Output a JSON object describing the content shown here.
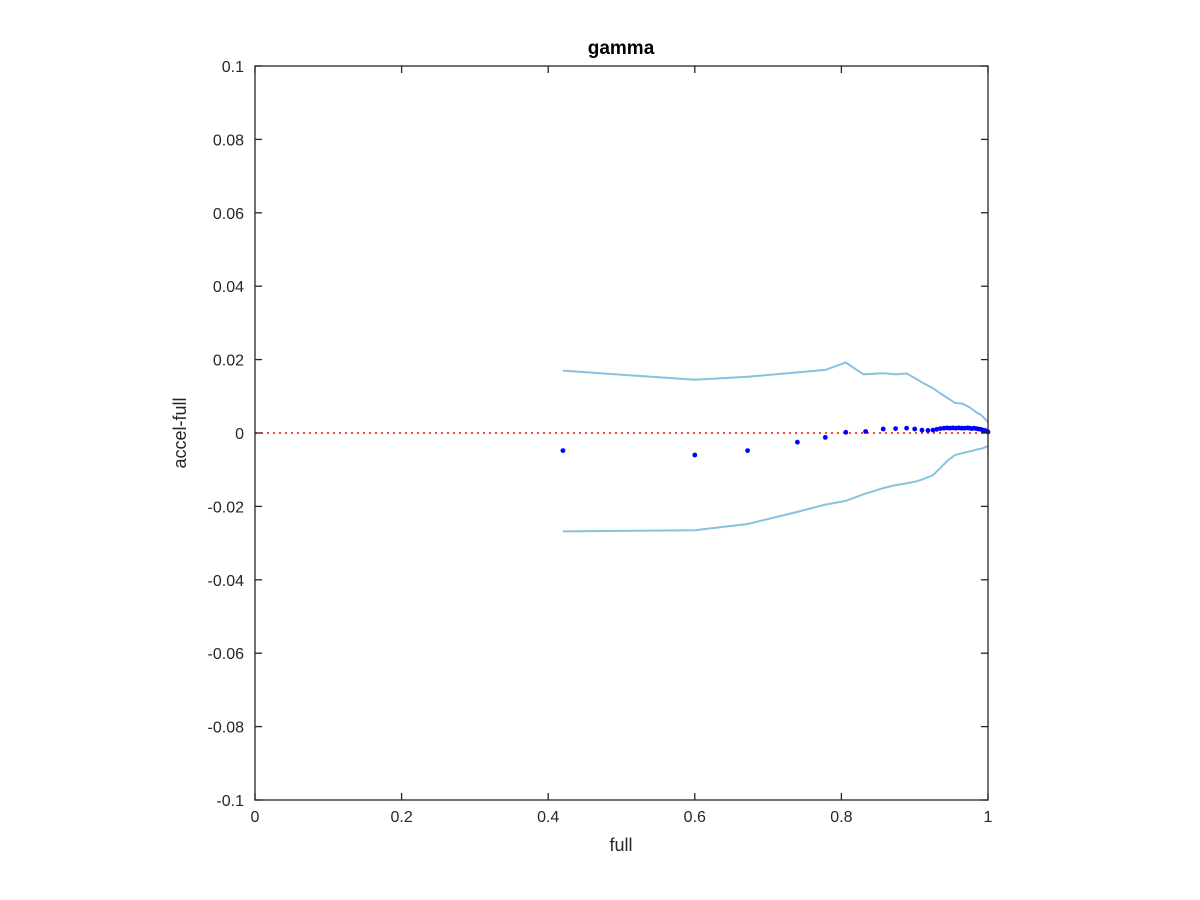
{
  "chart_data": {
    "type": "scatter",
    "title": "gamma",
    "xlabel": "full",
    "ylabel": "accel-full",
    "xlim": [
      0,
      1
    ],
    "ylim": [
      -0.1,
      0.1
    ],
    "x_ticks": [
      0,
      0.2,
      0.4,
      0.6,
      0.8,
      1
    ],
    "x_tick_labels": [
      "0",
      "0.2",
      "0.4",
      "0.6",
      "0.8",
      "1"
    ],
    "y_ticks": [
      -0.1,
      -0.08,
      -0.06,
      -0.04,
      -0.02,
      0,
      0.02,
      0.04,
      0.06,
      0.08,
      0.1
    ],
    "y_tick_labels": [
      "-0.1",
      "-0.08",
      "-0.06",
      "-0.04",
      "-0.02",
      "0",
      "0.02",
      "0.04",
      "0.06",
      "0.08",
      "0.1"
    ],
    "grid": false,
    "colors": {
      "points": "#0000ff",
      "bounds": "#89c2e0",
      "zero_line": "#ff0000",
      "axes": "#262626"
    },
    "reference_line": {
      "y": 0,
      "style": "dotted"
    },
    "points": {
      "x": [
        0.42,
        0.6,
        0.672,
        0.74,
        0.778,
        0.806,
        0.833,
        0.857,
        0.874,
        0.889,
        0.9,
        0.91,
        0.918,
        0.925,
        0.93,
        0.935,
        0.94,
        0.944,
        0.948,
        0.952,
        0.956,
        0.96,
        0.964,
        0.968,
        0.972,
        0.975,
        0.978,
        0.981,
        0.984,
        0.987,
        0.99,
        0.993,
        0.995,
        0.997,
        0.999,
        1.0
      ],
      "y": [
        -0.0048,
        -0.006,
        -0.0048,
        -0.0025,
        -0.0012,
        0.0002,
        0.0004,
        0.0011,
        0.0012,
        0.0013,
        0.0011,
        0.0008,
        0.0007,
        0.0008,
        0.001,
        0.0012,
        0.0013,
        0.0014,
        0.0013,
        0.0014,
        0.0013,
        0.0014,
        0.0013,
        0.0013,
        0.0014,
        0.0013,
        0.0012,
        0.0013,
        0.0012,
        0.0011,
        0.001,
        0.0008,
        0.0007,
        0.0006,
        0.0004,
        0.0003
      ]
    },
    "upper_bound": {
      "x": [
        0.42,
        0.6,
        0.672,
        0.74,
        0.778,
        0.806,
        0.83,
        0.857,
        0.874,
        0.889,
        0.9,
        0.91,
        0.925,
        0.935,
        0.945,
        0.955,
        0.965,
        0.975,
        0.985,
        0.99,
        0.995,
        1.0
      ],
      "y": [
        0.017,
        0.0145,
        0.0153,
        0.0165,
        0.0172,
        0.0192,
        0.016,
        0.0163,
        0.016,
        0.0162,
        0.015,
        0.0138,
        0.0122,
        0.0108,
        0.0095,
        0.0082,
        0.008,
        0.007,
        0.0055,
        0.005,
        0.004,
        0.003
      ]
    },
    "lower_bound": {
      "x": [
        0.42,
        0.6,
        0.672,
        0.74,
        0.778,
        0.806,
        0.83,
        0.857,
        0.874,
        0.889,
        0.9,
        0.91,
        0.925,
        0.935,
        0.945,
        0.955,
        0.965,
        0.975,
        0.985,
        0.99,
        0.995,
        1.0
      ],
      "y": [
        -0.0268,
        -0.0265,
        -0.0248,
        -0.0215,
        -0.0195,
        -0.0185,
        -0.0167,
        -0.015,
        -0.0142,
        -0.0137,
        -0.0133,
        -0.0127,
        -0.0115,
        -0.0095,
        -0.0075,
        -0.006,
        -0.0055,
        -0.005,
        -0.0045,
        -0.0043,
        -0.004,
        -0.0035
      ]
    }
  }
}
